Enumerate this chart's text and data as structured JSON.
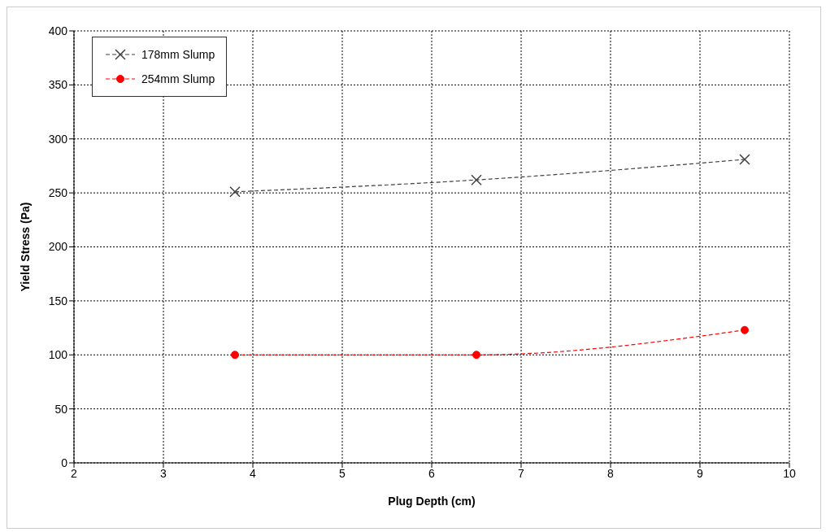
{
  "chart_data": {
    "type": "line",
    "xlabel": "Plug Depth (cm)",
    "ylabel": "Yield Stress (Pa)",
    "xlim": [
      2,
      10
    ],
    "xticks": [
      2,
      3,
      4,
      5,
      6,
      7,
      8,
      9,
      10
    ],
    "ylim": [
      0,
      400
    ],
    "yticks": [
      0,
      50,
      100,
      150,
      200,
      250,
      300,
      350,
      400
    ],
    "grid": true,
    "legend": "top left",
    "line_style": "dashed",
    "x": [
      3.8,
      6.5,
      9.5
    ],
    "series": [
      {
        "name": "178mm Slump",
        "color": "#404040",
        "marker": "cross",
        "values": [
          251,
          262,
          281
        ]
      },
      {
        "name": "254mm Slump",
        "color": "#ff0000",
        "marker": "circle",
        "values": [
          100,
          100,
          123
        ]
      }
    ]
  }
}
